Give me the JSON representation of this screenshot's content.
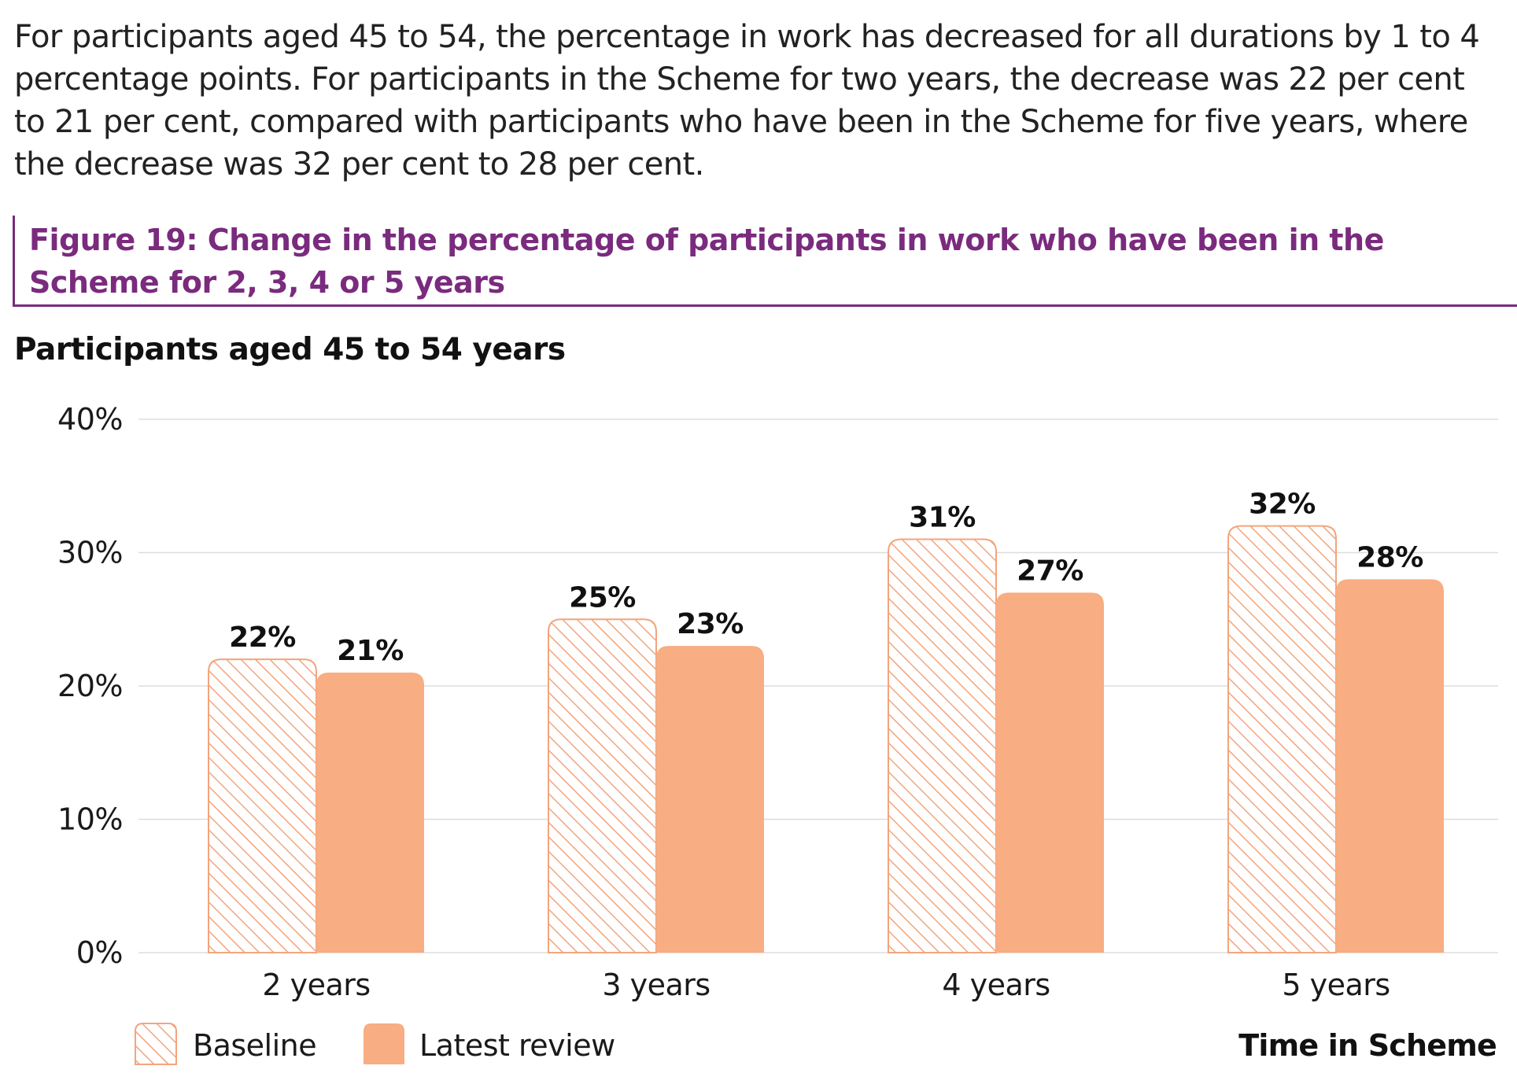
{
  "intro_text": "For participants aged 45 to 54, the percentage in work has decreased for all durations by 1 to 4 percentage points. For participants in the Scheme for two years, the decrease was 22 per cent to 21 per cent, compared with participants who have been in the Scheme for five years, where the decrease was 32 per cent to 28 per cent.",
  "figure_title": "Figure 19: Change in the percentage of participants in work who have been in the Scheme for 2, 3, 4 or 5 years",
  "colors": {
    "accent": "#7a2b7e",
    "bar_fill": "#f8ad82",
    "hatch": "#f4a47c",
    "grid": "#dddddd"
  },
  "chart_data": {
    "type": "bar",
    "title": "Participants aged 45 to 54 years",
    "xlabel": "Time in Scheme",
    "ylabel": "",
    "categories": [
      "2 years",
      "3 years",
      "4 years",
      "5 years"
    ],
    "series": [
      {
        "name": "Baseline",
        "style": "hatched",
        "values": [
          22,
          25,
          31,
          32
        ],
        "labels": [
          "22%",
          "25%",
          "31%",
          "32%"
        ]
      },
      {
        "name": "Latest review",
        "style": "solid",
        "values": [
          21,
          23,
          27,
          28
        ],
        "labels": [
          "21%",
          "23%",
          "27%",
          "28%"
        ]
      }
    ],
    "ylim": [
      0,
      40
    ],
    "yticks": [
      {
        "value": 0,
        "label": "0%"
      },
      {
        "value": 10,
        "label": "10%"
      },
      {
        "value": 20,
        "label": "20%"
      },
      {
        "value": 30,
        "label": "30%"
      },
      {
        "value": 40,
        "label": "40%"
      }
    ],
    "grid": true,
    "legend_position": "bottom-left"
  }
}
